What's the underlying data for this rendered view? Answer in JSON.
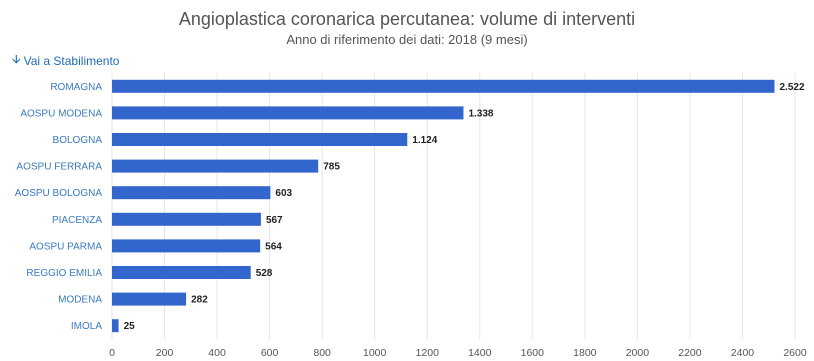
{
  "header": {
    "title": "Angioplastica coronarica percutanea: volume di interventi",
    "subtitle": "Anno di riferimento dei dati: 2018 (9 mesi)"
  },
  "nav": {
    "link_label": "Vai a Stabilimento",
    "link_icon": "arrow-down-icon"
  },
  "chart_data": {
    "type": "bar",
    "orientation": "horizontal",
    "categories": [
      "ROMAGNA",
      "AOSPU MODENA",
      "BOLOGNA",
      "AOSPU FERRARA",
      "AOSPU BOLOGNA",
      "PIACENZA",
      "AOSPU PARMA",
      "REGGIO EMILIA",
      "MODENA",
      "IMOLA"
    ],
    "values": [
      2522,
      1338,
      1124,
      785,
      603,
      567,
      564,
      528,
      282,
      25
    ],
    "data_labels": [
      "2.522",
      "1.338",
      "1.124",
      "785",
      "603",
      "567",
      "564",
      "528",
      "282",
      "25"
    ],
    "xlim": [
      0,
      2600
    ],
    "ticks": [
      0,
      200,
      400,
      600,
      800,
      1000,
      1200,
      1400,
      1600,
      1800,
      2000,
      2200,
      2400,
      2600
    ],
    "tick_labels": [
      "0",
      "200",
      "400",
      "600",
      "800",
      "1000",
      "1200",
      "1400",
      "1600",
      "1800",
      "2000",
      "2200",
      "2400",
      "2600"
    ],
    "grid": true,
    "bar_color": "#3366cc",
    "xlabel": "",
    "ylabel": ""
  }
}
